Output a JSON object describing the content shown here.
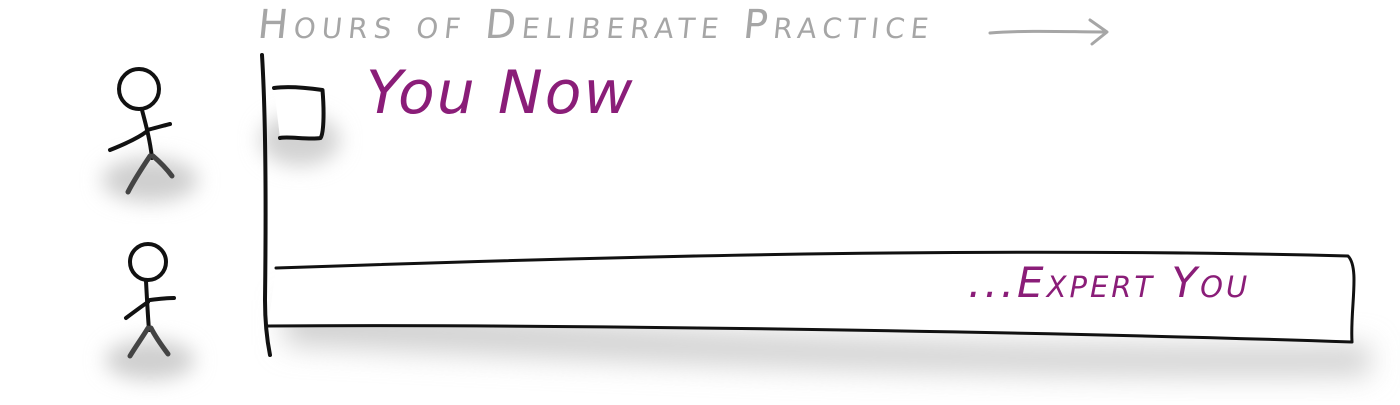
{
  "diagram": {
    "axis_title": "Hours of Deliberate Practice",
    "bars": [
      {
        "label": "You Now",
        "hours_fraction": 0.05
      },
      {
        "label": "...Expert You",
        "hours_fraction": 1.0
      }
    ],
    "colors": {
      "ink": "#111111",
      "label": "#8a1d78",
      "axis_title": "#a6a6a6",
      "shadow": "#cfcfcf"
    },
    "icons": [
      "stick-figure-icon",
      "arrow-right-icon"
    ]
  }
}
